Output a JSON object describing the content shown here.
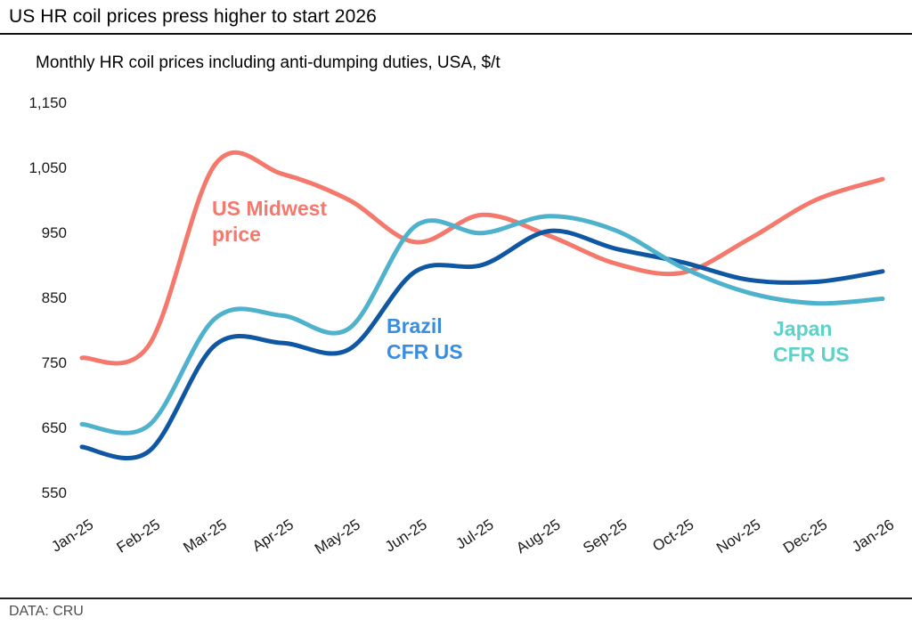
{
  "header": {
    "title": "US HR coil prices press higher to start 2026"
  },
  "subtitle": "Monthly HR coil prices including anti-dumping duties, USA, $/t",
  "footer": {
    "source": "DATA: CRU"
  },
  "colors": {
    "us_midwest": "#F4796C",
    "brazil_line": "#1057A3",
    "japan_line": "#4FB2CD",
    "brazil_label": "#3A8DDE",
    "japan_label": "#5ED1C9",
    "axis_text": "#1a1a1a"
  },
  "annotations": {
    "us_midwest": "US Midwest\nprice",
    "brazil": "Brazil\nCFR US",
    "japan": "Japan\nCFR US"
  },
  "chart_data": {
    "type": "line",
    "title": "US HR coil prices press higher to start 2026",
    "subtitle": "Monthly HR coil prices including anti-dumping duties, USA, $/t",
    "xlabel": "",
    "ylabel": "$/t",
    "grid": false,
    "legend_position": "inline-annotations",
    "x": [
      "Jan-25",
      "Feb-25",
      "Mar-25",
      "Apr-25",
      "May-25",
      "Jun-25",
      "Jul-25",
      "Aug-25",
      "Sep-25",
      "Oct-25",
      "Nov-25",
      "Dec-25",
      "Jan-26"
    ],
    "ylim": [
      550,
      1150
    ],
    "yticks": [
      550,
      650,
      750,
      850,
      950,
      1050,
      1150
    ],
    "series": [
      {
        "name": "US Midwest price",
        "color": "#F4796C",
        "values": [
          757,
          776,
          1055,
          1040,
          1000,
          935,
          977,
          945,
          902,
          888,
          940,
          1000,
          1032
        ]
      },
      {
        "name": "Brazil CFR US",
        "color": "#1057A3",
        "values": [
          620,
          613,
          777,
          780,
          770,
          890,
          900,
          952,
          925,
          904,
          877,
          874,
          890
        ]
      },
      {
        "name": "Japan CFR US",
        "color": "#4FB2CD",
        "values": [
          655,
          653,
          818,
          822,
          802,
          960,
          949,
          975,
          953,
          896,
          857,
          841,
          848
        ]
      }
    ],
    "source": "DATA: CRU"
  }
}
